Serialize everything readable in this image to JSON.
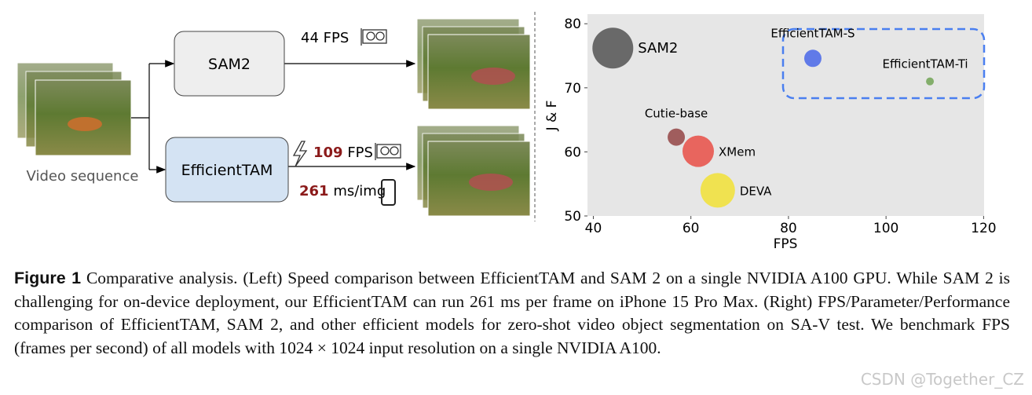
{
  "diagram": {
    "input_label": "Video sequence",
    "models": [
      {
        "name": "SAM2",
        "speed_value": "44",
        "speed_unit": "FPS"
      },
      {
        "name": "EfficientTAM",
        "speed_value": "109",
        "speed_unit": "FPS",
        "latency_value": "261",
        "latency_unit": "ms/img"
      }
    ]
  },
  "chart_data": {
    "type": "scatter",
    "xlabel": "FPS",
    "ylabel": "J & F",
    "labels": [
      "SAM2",
      "EfficientTAM-S",
      "EfficientTAM-Ti",
      "Cutie-base",
      "XMem",
      "DEVA"
    ],
    "x": [
      44,
      85,
      109,
      57,
      61.5,
      65.5
    ],
    "values": [
      76.2,
      74.6,
      71,
      62.3,
      60.1,
      54
    ],
    "sizes": [
      676,
      121,
      25,
      121,
      400,
      484
    ],
    "colors": [
      "#4a4a4a",
      "#3f5fe8",
      "#6aa04c",
      "#8e3b3b",
      "#e8453c",
      "#f2e12a"
    ],
    "xlim": [
      38.8,
      120.1
    ],
    "ylim": [
      50,
      81.5
    ],
    "xticks": [
      40,
      60,
      80,
      100,
      120
    ],
    "yticks": [
      50,
      60,
      70,
      80
    ],
    "grid": false
  },
  "caption": {
    "label": "Figure 1",
    "text": "Comparative analysis. (Left) Speed comparison between EfficientTAM and SAM 2 on a single NVIDIA A100 GPU. While SAM 2 is challenging for on-device deployment, our EfficientTAM can run 261 ms per frame on iPhone 15 Pro Max. (Right) FPS/Parameter/Performance comparison of EfficientTAM, SAM 2, and other efficient models for zero-shot video object segmentation on SA-V test. We benchmark FPS (frames per second) of all models with 1024 × 1024 input resolution on a single NVIDIA A100."
  },
  "watermark": "CSDN @Together_CZ"
}
